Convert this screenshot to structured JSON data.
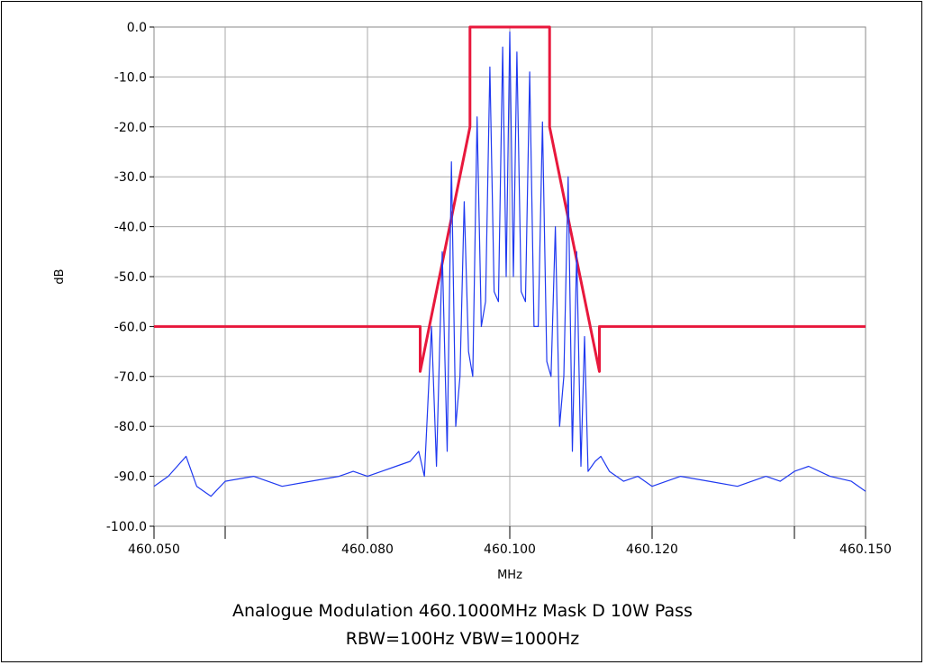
{
  "chart_data": {
    "type": "line",
    "xlabel": "MHz",
    "ylabel": "dB",
    "xlim": [
      460.05,
      460.15
    ],
    "ylim": [
      -100,
      0
    ],
    "x_ticks": [
      460.05,
      460.06,
      460.08,
      460.1,
      460.12,
      460.14,
      460.15
    ],
    "x_tick_labels": [
      "460.050",
      "",
      "460.080",
      "460.100",
      "460.120",
      "",
      "460.150"
    ],
    "y_ticks": [
      0,
      -10,
      -20,
      -30,
      -40,
      -50,
      -60,
      -70,
      -80,
      -90,
      -100
    ],
    "y_tick_labels": [
      "0.0",
      "-10.0",
      "-20.0",
      "-30.0",
      "-40.0",
      "-50.0",
      "-60.0",
      "-70.0",
      "-80.0",
      "-90.0",
      "-100.0"
    ],
    "grid": true,
    "series": [
      {
        "color": "#e8183c",
        "x": [
          460.05,
          460.0874,
          460.0874,
          460.0944,
          460.0944,
          460.1056,
          460.1056,
          460.1126,
          460.1126,
          460.15
        ],
        "y": [
          -60,
          -60,
          -69,
          -20,
          0,
          0,
          -20,
          -69,
          -60,
          -60
        ]
      },
      {
        "color": "#1f39f0",
        "x": [
          460.05,
          460.052,
          460.0545,
          460.056,
          460.058,
          460.06,
          460.064,
          460.068,
          460.072,
          460.076,
          460.078,
          460.08,
          460.082,
          460.084,
          460.086,
          460.0872,
          460.088,
          460.089,
          460.0897,
          460.0905,
          460.0912,
          460.0918,
          460.0924,
          460.093,
          460.0936,
          460.0942,
          460.0948,
          460.0954,
          460.096,
          460.0966,
          460.0972,
          460.0978,
          460.0984,
          460.099,
          460.0995,
          460.1,
          460.1005,
          460.101,
          460.1016,
          460.1022,
          460.1028,
          460.1034,
          460.104,
          460.1046,
          460.1052,
          460.1058,
          460.1064,
          460.107,
          460.1076,
          460.1082,
          460.1088,
          460.1094,
          460.11,
          460.1105,
          460.111,
          460.112,
          460.1128,
          460.114,
          460.116,
          460.118,
          460.12,
          460.124,
          460.128,
          460.132,
          460.136,
          460.138,
          460.14,
          460.142,
          460.145,
          460.148,
          460.15
        ],
        "y": [
          -92,
          -90,
          -86,
          -92,
          -94,
          -91,
          -90,
          -92,
          -91,
          -90,
          -89,
          -90,
          -89,
          -88,
          -87,
          -85,
          -90,
          -60,
          -88,
          -45,
          -85,
          -27,
          -80,
          -70,
          -35,
          -65,
          -70,
          -18,
          -60,
          -55,
          -8,
          -53,
          -55,
          -4,
          -50,
          -1,
          -50,
          -5,
          -53,
          -55,
          -9,
          -60,
          -60,
          -19,
          -67,
          -70,
          -40,
          -80,
          -70,
          -30,
          -85,
          -45,
          -88,
          -62,
          -89,
          -87,
          -86,
          -89,
          -91,
          -90,
          -92,
          -90,
          -91,
          -92,
          -90,
          -91,
          -89,
          -88,
          -90,
          -91,
          -93
        ]
      }
    ],
    "caption_line1": "Analogue Modulation  460.1000MHz  Mask D  10W Pass",
    "caption_line2": "RBW=100Hz VBW=1000Hz"
  }
}
